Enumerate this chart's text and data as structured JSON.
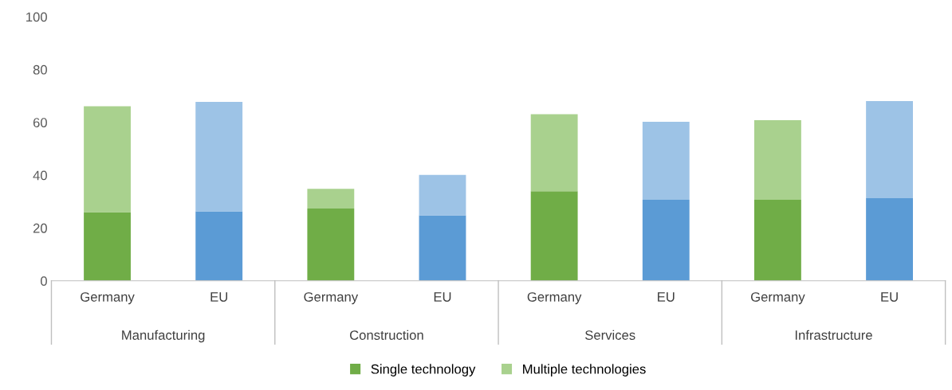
{
  "chart_data": {
    "type": "bar",
    "stacked": true,
    "categories": [
      "Germany",
      "EU",
      "Germany",
      "EU",
      "Germany",
      "EU",
      "Germany",
      "EU"
    ],
    "series": [
      {
        "name": "Single technology",
        "color": "#70ad47",
        "colors": [
          "#70ad47",
          "#5b9bd5",
          "#70ad47",
          "#5b9bd5",
          "#70ad47",
          "#5b9bd5",
          "#70ad47",
          "#5b9bd5"
        ],
        "values": [
          26,
          26.3,
          27.4,
          24.8,
          33.9,
          30.7,
          30.7,
          31.3
        ]
      },
      {
        "name": "Multiple technologies",
        "color": "#a9d18e",
        "colors": [
          "#a9d18e",
          "#9dc3e6",
          "#a9d18e",
          "#9dc3e6",
          "#a9d18e",
          "#9dc3e6",
          "#a9d18e",
          "#9dc3e6"
        ],
        "values": [
          40.1,
          41.5,
          7.4,
          15.3,
          29.2,
          29.5,
          30.1,
          36.8
        ]
      }
    ],
    "annotations": [
      "Manufacturing",
      "Construction",
      "Services",
      "Infrastructure"
    ],
    "ylim": [
      0,
      100
    ],
    "yticks": [
      0,
      20,
      40,
      60,
      80,
      100
    ],
    "grid": false,
    "legend": "bottom"
  }
}
